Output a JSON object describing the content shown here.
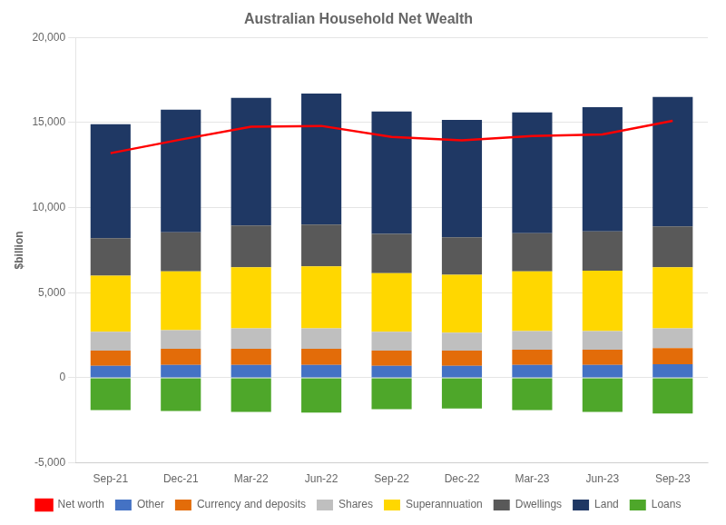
{
  "chart_data": {
    "type": "bar",
    "stacked": true,
    "title": "Australian Household Net Wealth",
    "ylabel": "$billion",
    "categories": [
      "Sep-21",
      "Dec-21",
      "Mar-22",
      "Jun-22",
      "Sep-22",
      "Dec-22",
      "Mar-23",
      "Jun-23",
      "Sep-23"
    ],
    "series": [
      {
        "name": "Other",
        "color": "#4472C4",
        "values": [
          700,
          750,
          750,
          750,
          700,
          700,
          750,
          750,
          800
        ]
      },
      {
        "name": "Currency and deposits",
        "color": "#E36C09",
        "values": [
          900,
          950,
          950,
          950,
          900,
          900,
          900,
          900,
          950
        ]
      },
      {
        "name": "Shares",
        "color": "#BFBFBF",
        "values": [
          1100,
          1100,
          1200,
          1200,
          1100,
          1050,
          1100,
          1100,
          1150
        ]
      },
      {
        "name": "Superannuation",
        "color": "#FFD700",
        "values": [
          3300,
          3450,
          3600,
          3650,
          3450,
          3400,
          3500,
          3550,
          3600
        ]
      },
      {
        "name": "Dwellings",
        "color": "#595959",
        "values": [
          2200,
          2300,
          2450,
          2450,
          2300,
          2200,
          2250,
          2300,
          2400
        ]
      },
      {
        "name": "Land",
        "color": "#1F3864",
        "values": [
          6700,
          7200,
          7500,
          7700,
          7200,
          6900,
          7100,
          7300,
          7600
        ]
      },
      {
        "name": "Loans",
        "color": "#4EA72A",
        "values": [
          -1900,
          -1950,
          -2000,
          -2050,
          -1850,
          -1800,
          -1900,
          -2000,
          -2100
        ]
      },
      {
        "name": "Net worth",
        "type": "line",
        "color": "#FF0000",
        "values": [
          13200,
          14000,
          14750,
          14800,
          14150,
          13950,
          14200,
          14300,
          15100
        ]
      }
    ],
    "ylim": [
      -5000,
      20000
    ],
    "yticks": [
      {
        "value": -5000,
        "label": "-5,000"
      },
      0,
      {
        "value": 5000,
        "label": "5,000"
      },
      {
        "value": 10000,
        "label": "10,000"
      },
      {
        "value": 15000,
        "label": "15,000"
      },
      {
        "value": 20000,
        "label": "20,000"
      }
    ],
    "grid": true,
    "legend": "bottom"
  }
}
